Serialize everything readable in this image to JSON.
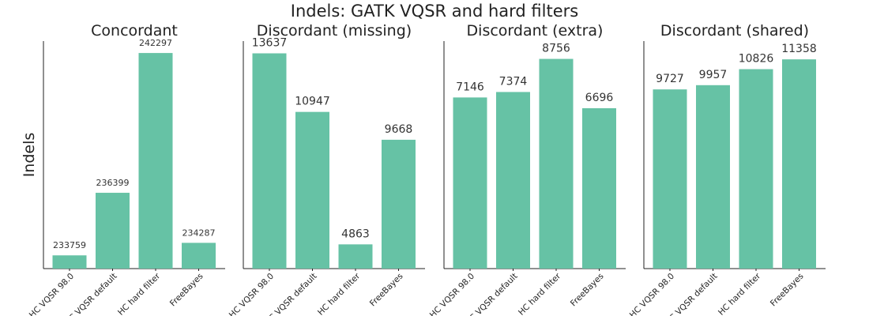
{
  "title": "Indels: GATK VQSR and hard filters",
  "ylabel": "Indels",
  "colors": {
    "bar": "#66c2a5"
  },
  "chart_data": [
    {
      "type": "bar",
      "title": "Concordant",
      "categories": [
        "HC VQSR 98.0",
        "HC VQSR default",
        "HC hard filter",
        "FreeBayes"
      ],
      "values": [
        233759,
        236399,
        242297,
        234287
      ],
      "ylim": [
        233200,
        242800
      ]
    },
    {
      "type": "bar",
      "title": "Discordant (missing)",
      "categories": [
        "HC VQSR 98.0",
        "HC VQSR default",
        "HC hard filter",
        "FreeBayes"
      ],
      "values": [
        13637,
        10947,
        4863,
        9668
      ],
      "ylim": [
        3750,
        14200
      ]
    },
    {
      "type": "bar",
      "title": "Discordant (extra)",
      "categories": [
        "HC VQSR 98.0",
        "HC VQSR default",
        "HC hard filter",
        "FreeBayes"
      ],
      "values": [
        7146,
        7374,
        8756,
        6696
      ],
      "ylim": [
        0,
        9500
      ]
    },
    {
      "type": "bar",
      "title": "Discordant (shared)",
      "categories": [
        "HC VQSR 98.0",
        "HC VQSR default",
        "HC hard filter",
        "FreeBayes"
      ],
      "values": [
        9727,
        9957,
        10826,
        11358
      ],
      "ylim": [
        0,
        12350
      ]
    }
  ]
}
